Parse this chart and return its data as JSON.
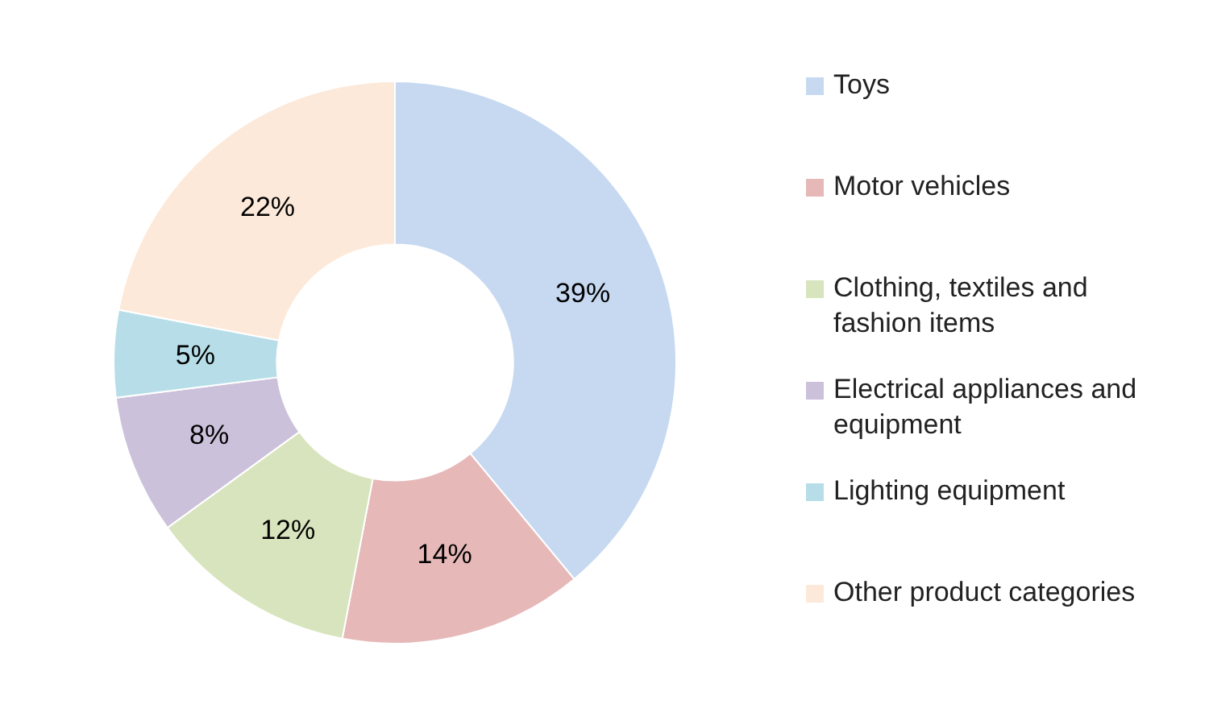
{
  "chart_data": {
    "type": "donut",
    "categories": [
      "Toys",
      "Motor vehicles",
      "Clothing, textiles and fashion items",
      "Electrical appliances and equipment",
      "Lighting equipment",
      "Other product categories"
    ],
    "values": [
      39,
      14,
      12,
      8,
      5,
      22
    ],
    "colors": [
      "#c6d9f1",
      "#e6b9b8",
      "#d7e4bd",
      "#ccc1da",
      "#b7dee8",
      "#fde9d9"
    ],
    "value_labels": [
      "39%",
      "14%",
      "12%",
      "8%",
      "5%",
      "22%"
    ],
    "legend": "right"
  }
}
